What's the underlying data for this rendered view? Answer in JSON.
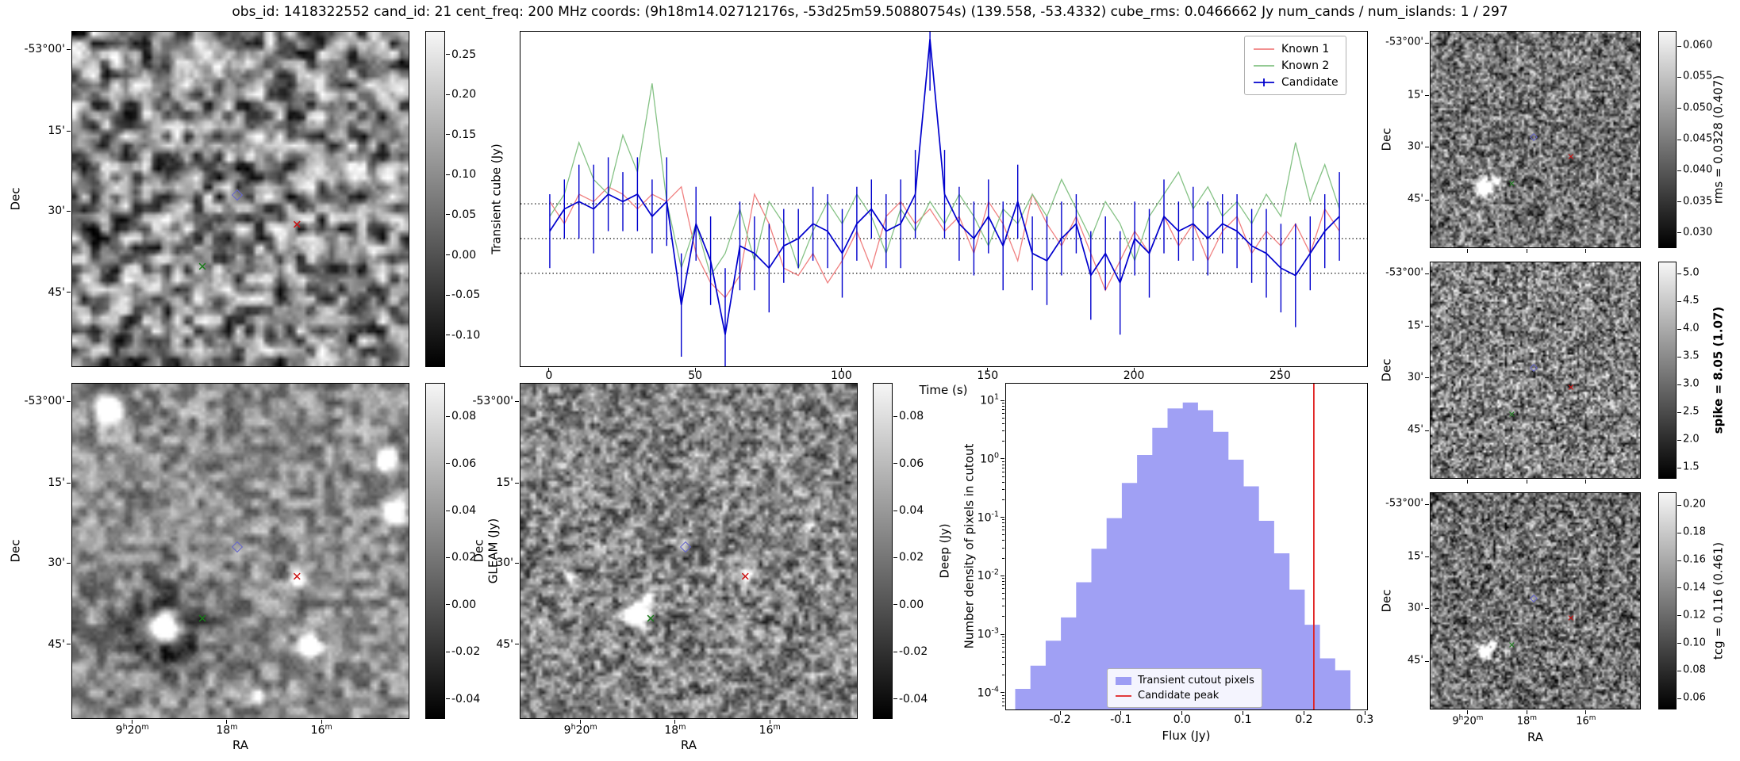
{
  "title": "obs_id: 1418322552 cand_id: 21 cent_freq: 200 MHz coords: (9h18m14.02712176s, -53d25m59.50880754s) (139.558, -53.4332) cube_rms: 0.0466662 Jy num_cands / num_islands: 1 / 297",
  "axes": {
    "dec_label": "Dec",
    "ra_label": "RA",
    "dec_ticks": [
      "-53°00'",
      "15'",
      "30'",
      "45'"
    ],
    "ra_ticks": [
      "9h20m",
      "18m",
      "16m"
    ]
  },
  "colorbars": {
    "transient": {
      "label": "Transient cube (Jy)",
      "ticks": [
        "0.25",
        "0.20",
        "0.15",
        "0.10",
        "0.05",
        "0.00",
        "-0.05",
        "-0.10"
      ]
    },
    "gleam": {
      "label": "GLEAM (Jy)",
      "ticks": [
        "0.08",
        "0.06",
        "0.04",
        "0.02",
        "0.00",
        "-0.02",
        "-0.04"
      ]
    },
    "deep": {
      "label": "Deep (Jy)",
      "ticks": [
        "0.08",
        "0.06",
        "0.04",
        "0.02",
        "0.00",
        "-0.02",
        "-0.04"
      ]
    },
    "rms": {
      "label": "rms = 0.0328 (0.407)",
      "ticks": [
        "0.060",
        "0.055",
        "0.050",
        "0.045",
        "0.040",
        "0.035",
        "0.030"
      ]
    },
    "spike": {
      "label": "spike = 8.05 (1.07)",
      "bold": true,
      "ticks": [
        "5.0",
        "4.5",
        "4.0",
        "3.5",
        "3.0",
        "2.5",
        "2.0",
        "1.5"
      ]
    },
    "tcg": {
      "label": "tcg = 0.116 (0.461)",
      "ticks": [
        "0.20",
        "0.18",
        "0.16",
        "0.14",
        "0.12",
        "0.10",
        "0.08",
        "0.06"
      ]
    }
  },
  "images": {
    "markers": [
      {
        "shape": "diamond",
        "name": "candidate-position-marker",
        "color": "#6666cc",
        "fx": 0.488,
        "fy": 0.485
      },
      {
        "shape": "x",
        "name": "known1-position-marker",
        "color": "#cc1111",
        "fx": 0.665,
        "fy": 0.575
      },
      {
        "shape": "x",
        "name": "known2-position-marker",
        "color": "#1a7a1a",
        "fx": 0.385,
        "fy": 0.7
      }
    ]
  },
  "chart_data": [
    {
      "type": "line",
      "title": "",
      "xlabel": "Time (s)",
      "ylabel": "",
      "xlim": [
        -10,
        280
      ],
      "ylim": [
        -0.175,
        0.28
      ],
      "xticks": [
        0,
        50,
        100,
        150,
        200,
        250
      ],
      "hlines_dotted": [
        0.047,
        0.0,
        -0.047
      ],
      "legend_position": "upper right",
      "x": [
        0,
        5,
        10,
        15,
        20,
        25,
        30,
        35,
        40,
        45,
        50,
        55,
        60,
        65,
        70,
        75,
        80,
        85,
        90,
        95,
        100,
        105,
        110,
        115,
        120,
        125,
        130,
        135,
        140,
        145,
        150,
        155,
        160,
        165,
        170,
        175,
        180,
        185,
        190,
        195,
        200,
        205,
        210,
        215,
        220,
        225,
        230,
        235,
        240,
        245,
        250,
        255,
        260,
        265,
        270
      ],
      "series": [
        {
          "name": "Known 1",
          "color": "#f08080",
          "values": [
            0.05,
            0.02,
            0.06,
            0.05,
            0.07,
            0.06,
            0.04,
            0.06,
            0.05,
            0.07,
            -0.02,
            -0.06,
            -0.08,
            -0.05,
            0.06,
            0.02,
            -0.04,
            -0.05,
            -0.02,
            -0.06,
            -0.03,
            0.01,
            -0.04,
            0.03,
            0.05,
            0.02,
            0.04,
            0.01,
            0.03,
            -0.02,
            0.05,
            0.02,
            -0.03,
            0.06,
            0.02,
            -0.01,
            0.03,
            -0.02,
            -0.07,
            -0.03,
            0.01,
            -0.02,
            0.03,
            -0.01,
            0.02,
            -0.03,
            0.01,
            0.03,
            -0.02,
            0.01,
            -0.01,
            0.02,
            -0.02,
            0.04,
            0.01
          ]
        },
        {
          "name": "Known 2",
          "color": "#85c285",
          "values": [
            0.03,
            0.06,
            0.13,
            0.08,
            0.06,
            0.14,
            0.09,
            0.21,
            0.05,
            -0.04,
            0.02,
            -0.05,
            -0.02,
            0.04,
            -0.03,
            0.05,
            0.02,
            -0.04,
            0.01,
            0.05,
            0.02,
            0.06,
            0.03,
            -0.02,
            0.04,
            0.01,
            0.05,
            0.02,
            0.06,
            0.03,
            -0.01,
            0.04,
            0.02,
            0.06,
            0.03,
            0.08,
            0.04,
            0.0,
            0.05,
            0.02,
            -0.03,
            0.03,
            0.06,
            0.09,
            0.04,
            0.07,
            0.03,
            0.05,
            0.02,
            0.06,
            0.03,
            0.13,
            0.05,
            0.1,
            0.04
          ]
        },
        {
          "name": "Candidate",
          "color": "#0000cd",
          "errorbar": true,
          "values": [
            0.01,
            0.04,
            0.05,
            0.04,
            0.06,
            0.05,
            0.06,
            0.03,
            0.05,
            -0.09,
            0.02,
            -0.03,
            -0.13,
            -0.01,
            -0.02,
            -0.04,
            -0.01,
            0.0,
            0.02,
            0.01,
            -0.02,
            0.02,
            0.04,
            0.01,
            0.02,
            0.06,
            0.27,
            0.06,
            0.02,
            0.0,
            0.03,
            -0.01,
            0.05,
            -0.02,
            -0.03,
            0.0,
            0.02,
            -0.05,
            -0.02,
            -0.06,
            0.0,
            -0.02,
            0.03,
            0.01,
            0.02,
            0.0,
            0.02,
            0.01,
            -0.01,
            -0.02,
            -0.04,
            -0.05,
            -0.02,
            0.01,
            0.03
          ],
          "errors": [
            0.05,
            0.04,
            0.05,
            0.06,
            0.05,
            0.04,
            0.05,
            0.05,
            0.06,
            0.07,
            0.05,
            0.06,
            0.09,
            0.06,
            0.05,
            0.06,
            0.05,
            0.04,
            0.05,
            0.05,
            0.06,
            0.05,
            0.04,
            0.05,
            0.06,
            0.06,
            0.07,
            0.06,
            0.05,
            0.05,
            0.05,
            0.06,
            0.05,
            0.05,
            0.06,
            0.05,
            0.04,
            0.06,
            0.05,
            0.07,
            0.05,
            0.06,
            0.05,
            0.04,
            0.05,
            0.05,
            0.04,
            0.05,
            0.05,
            0.06,
            0.06,
            0.07,
            0.05,
            0.05,
            0.06
          ]
        }
      ]
    },
    {
      "type": "bar",
      "title": "",
      "xlabel": "Flux (Jy)",
      "ylabel": "Number density of pixels in cutout",
      "xlim": [
        -0.29,
        0.305
      ],
      "ylog": true,
      "ylim_exp": [
        -4.3,
        1.3
      ],
      "xticks": [
        -0.2,
        -0.1,
        0.0,
        0.1,
        0.2,
        0.3
      ],
      "ytick_exponents": [
        1,
        0,
        -1,
        -2,
        -3,
        -4
      ],
      "bin_width": 0.025,
      "bin_left": [
        -0.275,
        -0.25,
        -0.225,
        -0.2,
        -0.175,
        -0.15,
        -0.125,
        -0.1,
        -0.075,
        -0.05,
        -0.025,
        0.0,
        0.025,
        0.05,
        0.075,
        0.1,
        0.125,
        0.15,
        0.175,
        0.2,
        0.225,
        0.25
      ],
      "density": [
        0.00012,
        0.0003,
        0.0008,
        0.002,
        0.008,
        0.03,
        0.1,
        0.4,
        1.2,
        3.5,
        7.5,
        9.5,
        7.0,
        3.0,
        1.0,
        0.35,
        0.09,
        0.025,
        0.006,
        0.0015,
        0.0004,
        0.00025
      ],
      "fill_color": "#7b7bf0",
      "candidate_peak": 0.215,
      "peak_color": "#e02020",
      "legend": [
        "Transient cutout pixels",
        "Candidate peak"
      ],
      "legend_position": "lower center"
    }
  ]
}
